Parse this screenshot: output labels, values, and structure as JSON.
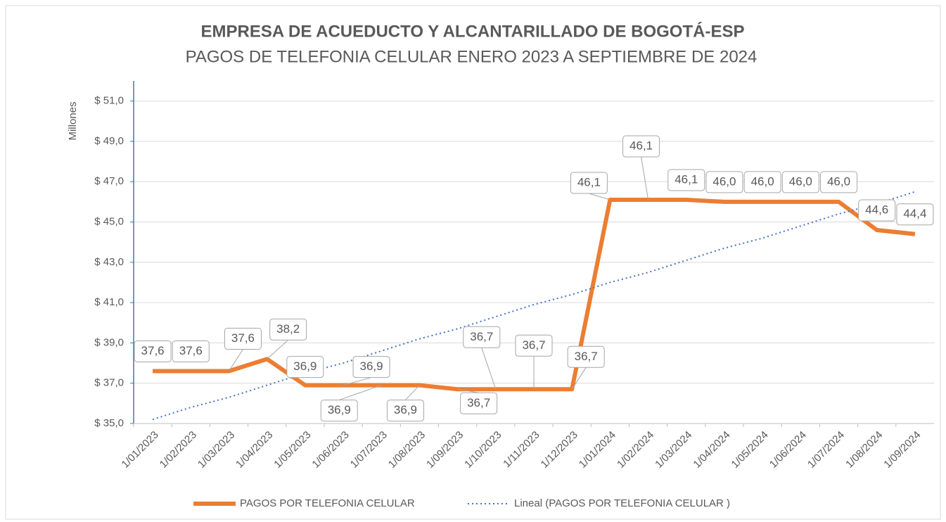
{
  "chart_data": {
    "type": "line",
    "title": "EMPRESA DE ACUEDUCTO Y ALCANTARILLADO DE BOGOTÁ-ESP",
    "subtitle": "PAGOS DE TELEFONIA CELULAR ENERO 2023 A SEPTIEMBRE DE 2024",
    "y_label": "Millones",
    "categories": [
      "1/01/2023",
      "1/02/2023",
      "1/03/2023",
      "1/04/2023",
      "1/05/2023",
      "1/06/2023",
      "1/07/2023",
      "1/08/2023",
      "1/09/2023",
      "1/10/2023",
      "1/11/2023",
      "1/12/2023",
      "1/01/2024",
      "1/02/2024",
      "1/03/2024",
      "1/04/2024",
      "1/05/2024",
      "1/06/2024",
      "1/07/2024",
      "1/08/2024",
      "1/09/2024"
    ],
    "series": [
      {
        "name": "PAGOS POR TELEFONIA CELULAR",
        "color": "#ed7d31",
        "values": [
          37.6,
          37.6,
          37.6,
          38.2,
          36.9,
          36.9,
          36.9,
          36.9,
          36.7,
          36.7,
          36.7,
          36.7,
          46.1,
          46.1,
          46.1,
          46.0,
          46.0,
          46.0,
          46.0,
          44.6,
          44.4
        ],
        "value_labels": [
          "37,6",
          "37,6",
          "37,6",
          "38,2",
          "36,9",
          "36,9",
          "36,9",
          "36,9",
          "36,7",
          "36,7",
          "36,7",
          "36,7",
          "46,1",
          "46,1",
          "46,1",
          "46,0",
          "46,0",
          "46,0",
          "46,0",
          "44,6",
          "44,4"
        ]
      },
      {
        "name": "Lineal (PAGOS POR TELEFONIA CELULAR )",
        "color": "#4472c4",
        "dotted": true,
        "values": [
          35.2,
          35.8,
          36.3,
          36.9,
          37.5,
          38.0,
          38.6,
          39.2,
          39.7,
          40.3,
          40.9,
          41.4,
          42.0,
          42.5,
          43.1,
          43.7,
          44.2,
          44.8,
          45.4,
          45.9,
          46.5
        ]
      }
    ],
    "ylim": [
      35,
      52
    ],
    "yticks": [
      {
        "value": 35,
        "label": "$ 35,0"
      },
      {
        "value": 37,
        "label": "$ 37,0"
      },
      {
        "value": 39,
        "label": "$ 39,0"
      },
      {
        "value": 41,
        "label": "$ 41,0"
      },
      {
        "value": 43,
        "label": "$ 43,0"
      },
      {
        "value": 45,
        "label": "$ 45,0"
      },
      {
        "value": 47,
        "label": "$ 47,0"
      },
      {
        "value": 49,
        "label": "$ 49,0"
      },
      {
        "value": 51,
        "label": "$ 51,0"
      }
    ],
    "grid": true,
    "legend": "bottom"
  }
}
